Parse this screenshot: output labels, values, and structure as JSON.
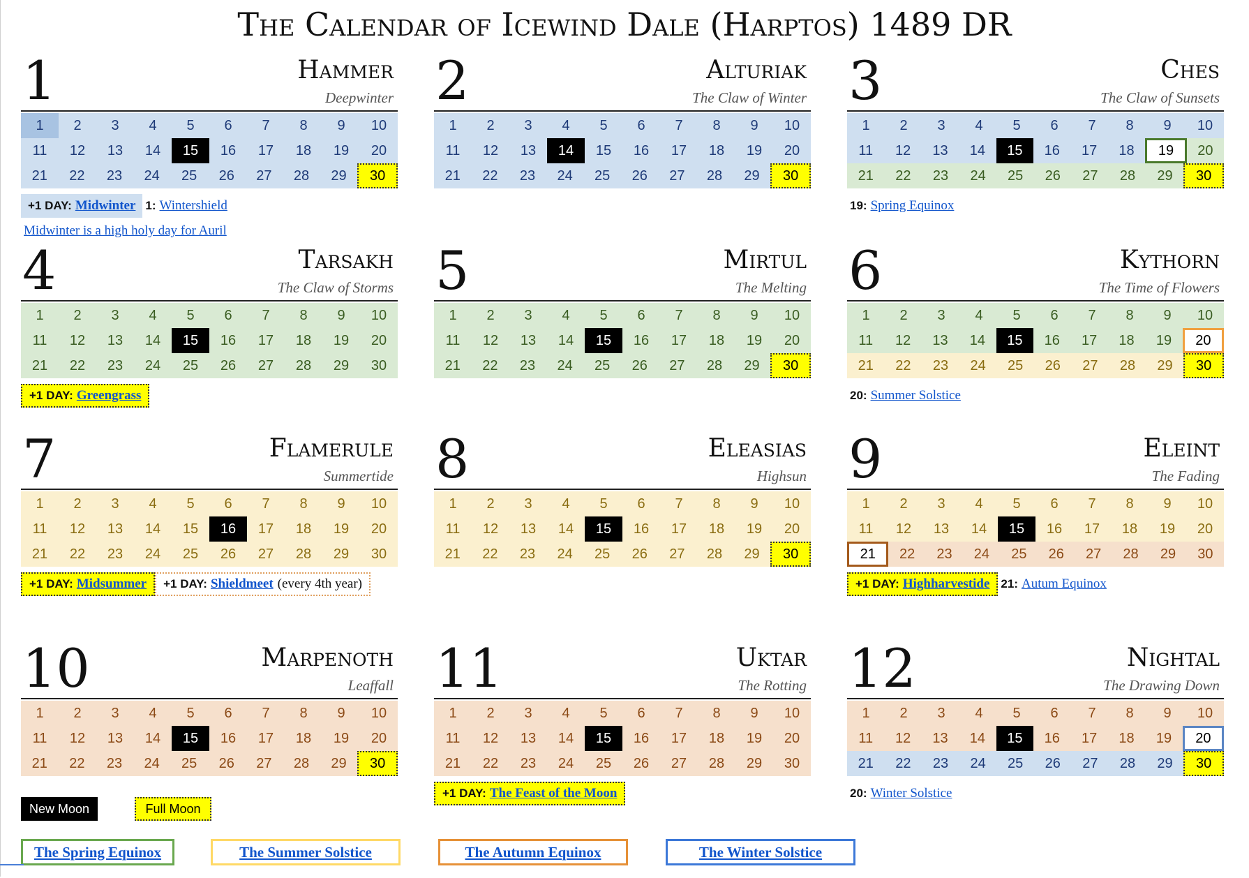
{
  "title": "The Calendar of Icewind Dale (Harptos) 1489 DR",
  "months": [
    {
      "number": "1",
      "name": "Hammer",
      "subtitle": "Deepwinter",
      "rows": [
        "blue",
        "blue",
        "blue"
      ],
      "new_moon": [
        15
      ],
      "full_moon": [
        30
      ],
      "today": [
        1
      ],
      "marker": null,
      "notes": [
        [
          {
            "style": "blue",
            "prefix": "+1 DAY:",
            "link": "Midwinter"
          },
          {
            "style": "plain",
            "prefix": "1:",
            "link": "Wintershield"
          }
        ],
        [
          {
            "style": "line",
            "link": "Midwinter is a high holy day for Auril"
          }
        ]
      ]
    },
    {
      "number": "2",
      "name": "Alturiak",
      "subtitle": "The Claw of Winter",
      "rows": [
        "blue",
        "blue",
        "blue"
      ],
      "new_moon": [
        14
      ],
      "full_moon": [
        30
      ],
      "today": [],
      "marker": null,
      "notes": []
    },
    {
      "number": "3",
      "name": "Ches",
      "subtitle": "The Claw of Sunsets",
      "rows": [
        "blue",
        "blue",
        "green"
      ],
      "new_moon": [
        15
      ],
      "full_moon": [
        30
      ],
      "today": [],
      "marker": {
        "day": 19,
        "type": "spring"
      },
      "split": {
        "day": 19,
        "after": "green"
      },
      "notes": [
        [
          {
            "style": "plain",
            "prefix": "19:",
            "link": "Spring Equinox"
          }
        ]
      ]
    },
    {
      "number": "4",
      "name": "Tarsakh",
      "subtitle": "The Claw of Storms",
      "rows": [
        "green",
        "green",
        "green"
      ],
      "new_moon": [
        15
      ],
      "full_moon": [],
      "today": [],
      "marker": null,
      "notes": [
        [
          {
            "style": "yellow",
            "prefix": "+1 DAY:",
            "link": "Greengrass"
          }
        ]
      ]
    },
    {
      "number": "5",
      "name": "Mirtul",
      "subtitle": "The Melting",
      "rows": [
        "green",
        "green",
        "green"
      ],
      "new_moon": [
        15
      ],
      "full_moon": [
        30
      ],
      "today": [],
      "marker": null,
      "notes": []
    },
    {
      "number": "6",
      "name": "Kythorn",
      "subtitle": "The Time of Flowers",
      "rows": [
        "green",
        "green",
        "yellow"
      ],
      "new_moon": [
        15
      ],
      "full_moon": [
        30
      ],
      "today": [],
      "marker": {
        "day": 20,
        "type": "summer"
      },
      "notes": [
        [
          {
            "style": "plain",
            "prefix": "20:",
            "link": "Summer Solstice"
          }
        ]
      ]
    },
    {
      "number": "7",
      "name": "Flamerule",
      "subtitle": "Summertide",
      "rows": [
        "yellow",
        "yellow",
        "yellow"
      ],
      "new_moon": [
        16
      ],
      "full_moon": [],
      "today": [],
      "marker": null,
      "notes": [
        [
          {
            "style": "yellow",
            "prefix": "+1 DAY:",
            "link": "Midsummer"
          },
          {
            "style": "dashorange",
            "prefix": "+1 DAY:",
            "link": "Shieldmeet",
            "suffix": "(every 4th year)"
          }
        ]
      ]
    },
    {
      "number": "8",
      "name": "Eleasias",
      "subtitle": "Highsun",
      "rows": [
        "yellow",
        "yellow",
        "yellow"
      ],
      "new_moon": [
        15
      ],
      "full_moon": [
        30
      ],
      "today": [],
      "marker": null,
      "notes": []
    },
    {
      "number": "9",
      "name": "Eleint",
      "subtitle": "The Fading",
      "rows": [
        "yellow",
        "yellow",
        "orange"
      ],
      "new_moon": [
        15
      ],
      "full_moon": [],
      "today": [],
      "marker": {
        "day": 21,
        "type": "autumn"
      },
      "notes": [
        [
          {
            "style": "yellow",
            "prefix": "+1 DAY:",
            "link": "Highharvestide"
          },
          {
            "style": "plain",
            "prefix": "21:",
            "link": "Autum Equinox"
          }
        ]
      ]
    },
    {
      "number": "10",
      "name": "Marpenoth",
      "subtitle": "Leaffall",
      "rows": [
        "orange",
        "orange",
        "orange"
      ],
      "new_moon": [
        15
      ],
      "full_moon": [
        30
      ],
      "today": [],
      "marker": null,
      "notes": []
    },
    {
      "number": "11",
      "name": "Uktar",
      "subtitle": "The Rotting",
      "rows": [
        "orange",
        "orange",
        "orange"
      ],
      "new_moon": [
        15
      ],
      "full_moon": [],
      "today": [],
      "marker": null,
      "notes": [
        [
          {
            "style": "yellow",
            "prefix": "+1 DAY:",
            "link": "The Feast of the Moon"
          }
        ]
      ]
    },
    {
      "number": "12",
      "name": "Nightal",
      "subtitle": "The Drawing Down",
      "rows": [
        "orange",
        "orange",
        "blue"
      ],
      "new_moon": [
        15
      ],
      "full_moon": [
        30
      ],
      "today": [],
      "marker": {
        "day": 20,
        "type": "winter"
      },
      "notes": [
        [
          {
            "style": "plain",
            "prefix": "20:",
            "link": "Winter Solstice"
          }
        ]
      ]
    }
  ],
  "legend": {
    "new_moon": "New Moon",
    "full_moon": "Full Moon"
  },
  "seasons": {
    "spring": "The Spring Equinox",
    "summer": "The Summer Solstice",
    "autumn": "The Autumn Equinox",
    "winter": "The Winter Solstice"
  }
}
